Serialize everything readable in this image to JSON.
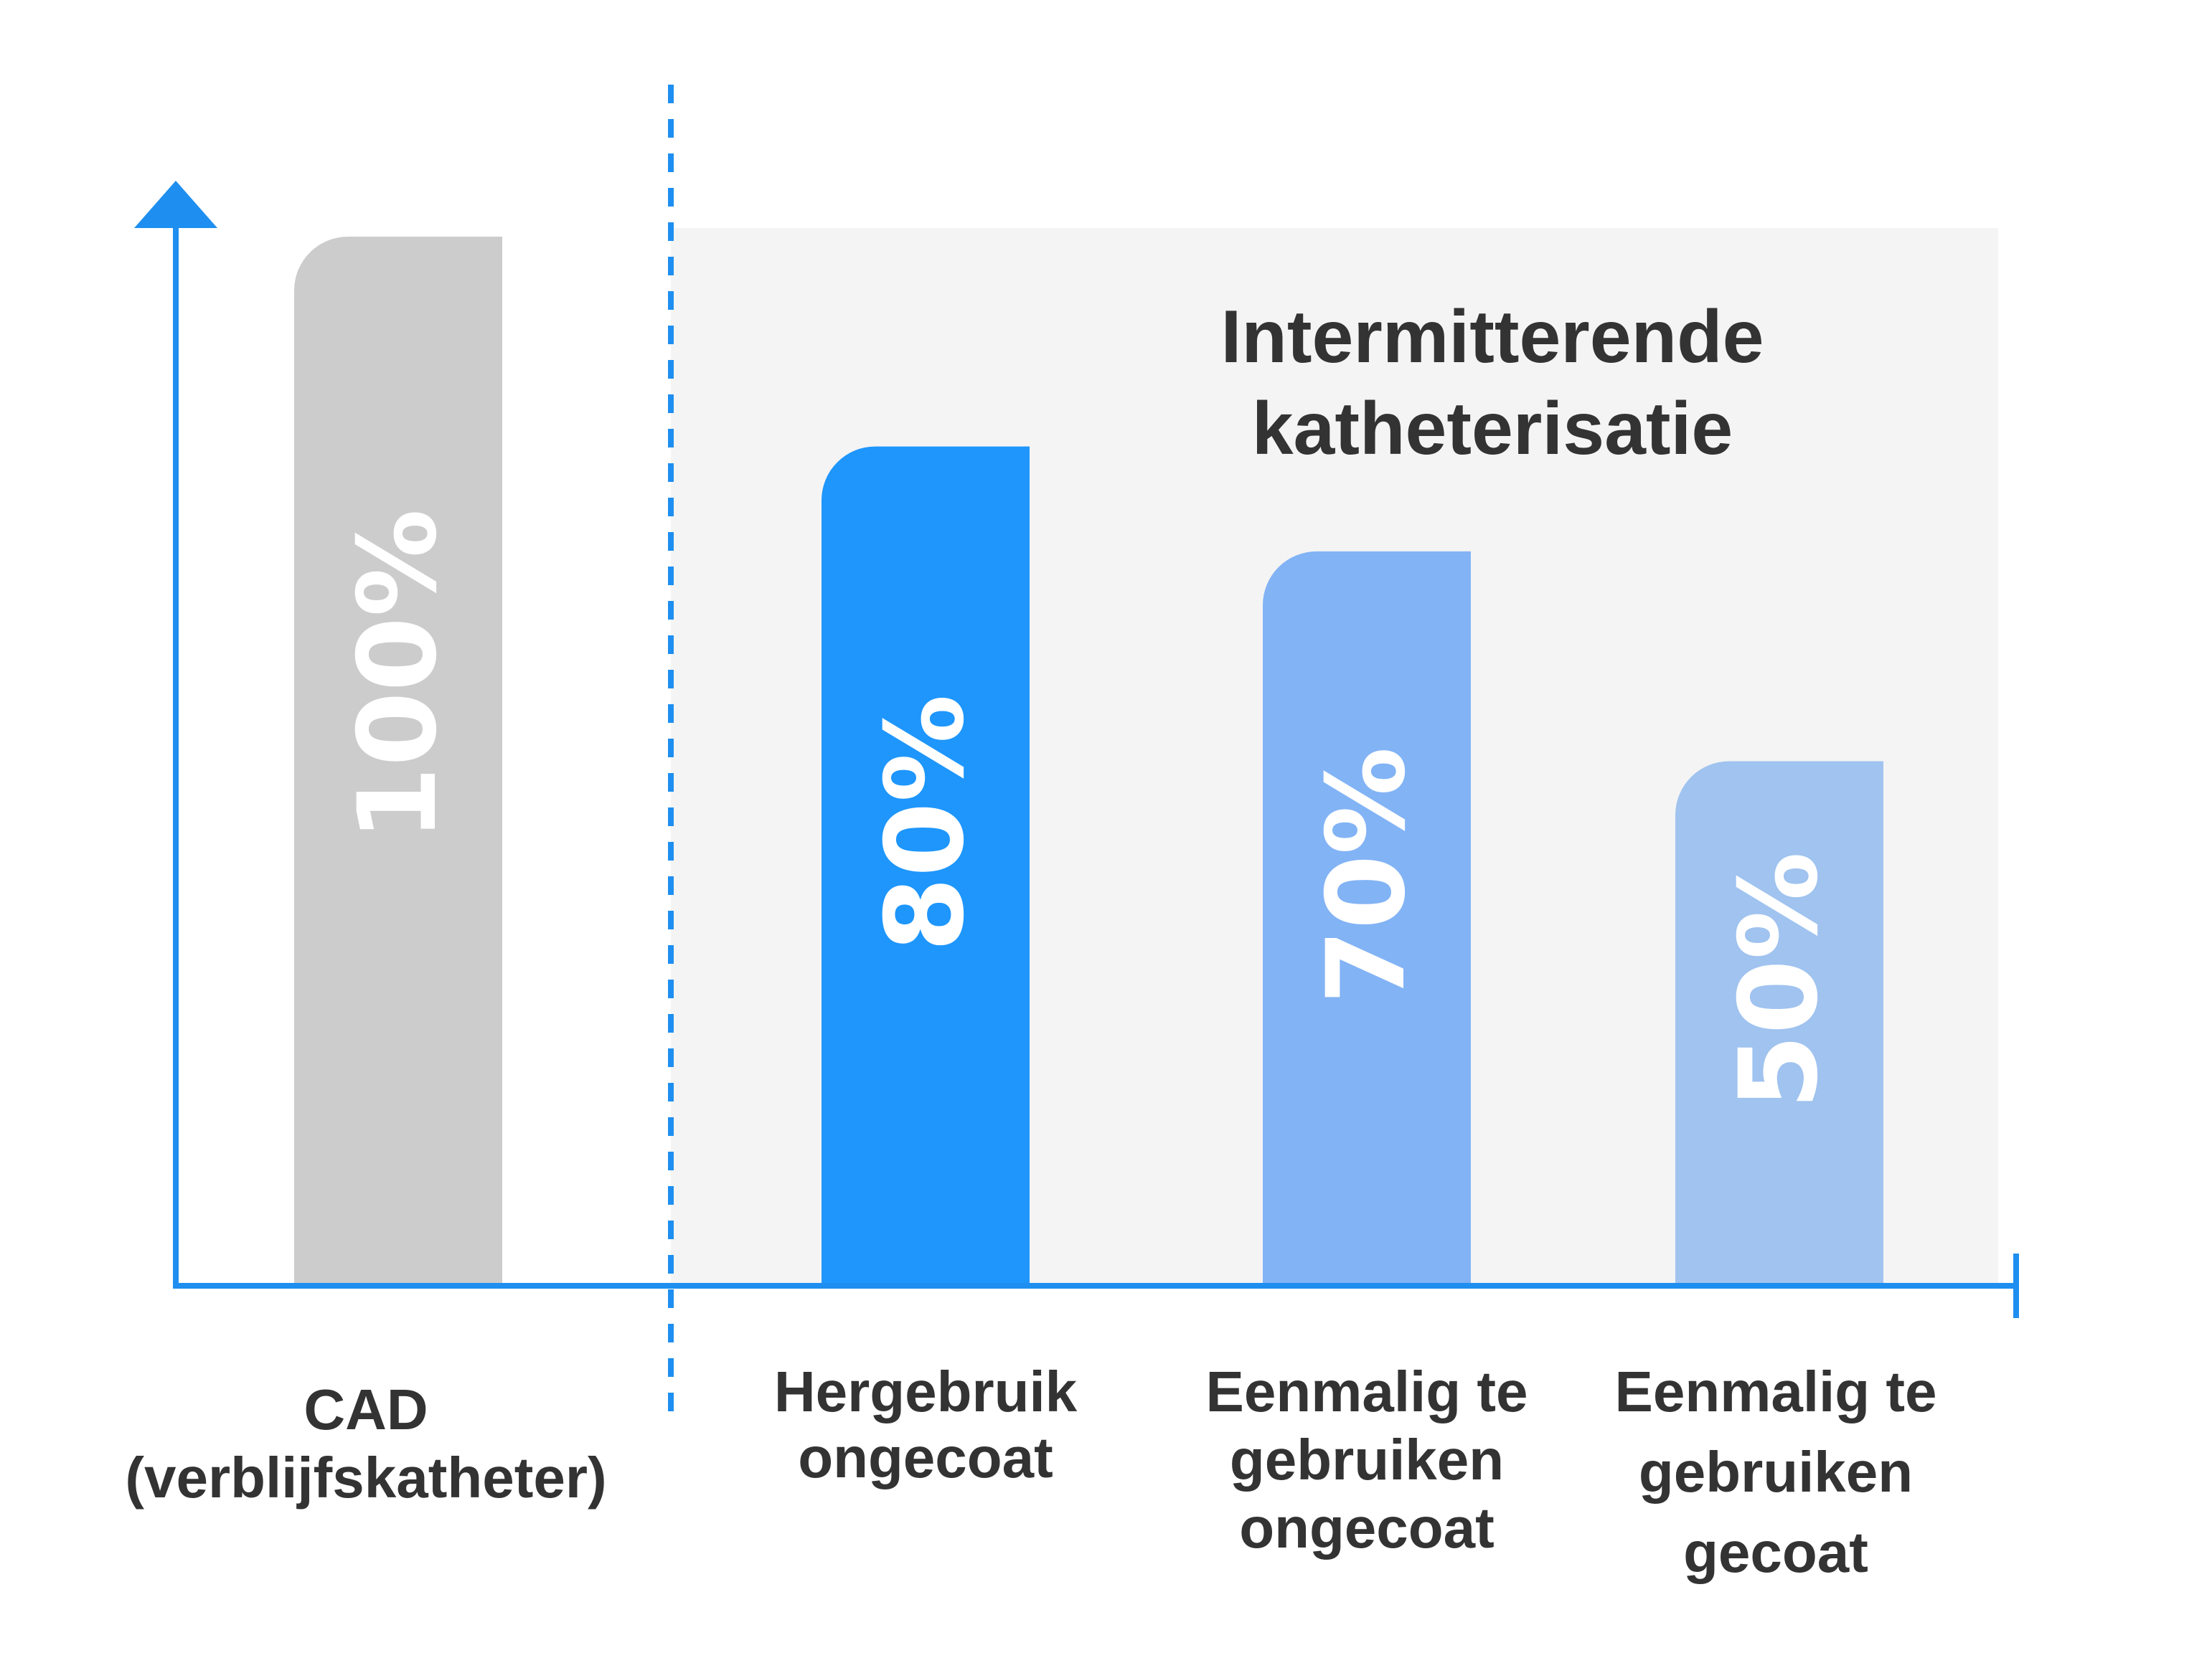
{
  "chart_data": {
    "type": "bar",
    "categories": [
      [
        "CAD",
        "(verblijfskatheter)"
      ],
      [
        "Hergebruik",
        "ongecoat"
      ],
      [
        "Eenmalig te",
        "gebruiken",
        "ongecoat"
      ],
      [
        "Eenmalig te",
        "gebruiken",
        "gecoat"
      ]
    ],
    "values": [
      100,
      80,
      70,
      50
    ],
    "value_labels": [
      "100%",
      "80%",
      "70%",
      "50%"
    ],
    "bar_colors": [
      "#cccccc",
      "#1e96fc",
      "#82b3f5",
      "#a0c3ef"
    ],
    "group": {
      "title_lines": [
        "Intermitterende",
        "katheterisatie"
      ],
      "categories": [
        1,
        2,
        3
      ],
      "background": "#f4f4f4"
    },
    "ylim": [
      0,
      100
    ],
    "axis_color": "#1e8ff0",
    "text_color": "#333333",
    "label_color": "#ffffff",
    "grid": false,
    "legend": "none"
  }
}
